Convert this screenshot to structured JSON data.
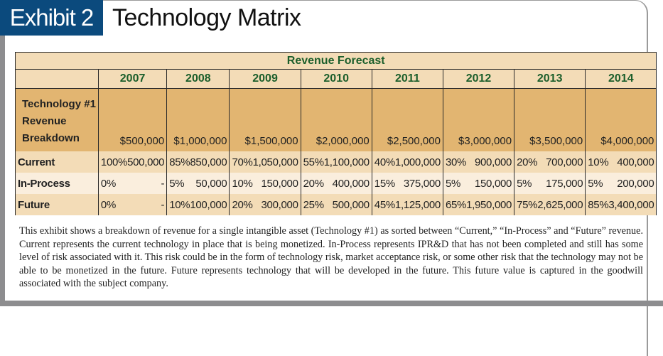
{
  "header": {
    "exhibit": "Exhibit 2",
    "title": "Technology Matrix"
  },
  "table": {
    "title": "Revenue Forecast",
    "years": [
      "2007",
      "2008",
      "2009",
      "2010",
      "2011",
      "2012",
      "2013",
      "2014"
    ],
    "total_label_lines": [
      "Technology #1",
      "Revenue",
      "Breakdown"
    ],
    "totals": [
      "$500,000",
      "$1,000,000",
      "$1,500,000",
      "$2,000,000",
      "$2,500,000",
      "$3,000,000",
      "$3,500,000",
      "$4,000,000"
    ],
    "rows": [
      {
        "label": "Current",
        "cells": [
          [
            "100%",
            "500,000"
          ],
          [
            "85%",
            "850,000"
          ],
          [
            "70%",
            "1,050,000"
          ],
          [
            "55%",
            "1,100,000"
          ],
          [
            "40%",
            "1,000,000"
          ],
          [
            "30%",
            "900,000"
          ],
          [
            "20%",
            "700,000"
          ],
          [
            "10%",
            "400,000"
          ]
        ]
      },
      {
        "label": "In-Process",
        "cells": [
          [
            "0%",
            "-"
          ],
          [
            "5%",
            "50,000"
          ],
          [
            "10%",
            "150,000"
          ],
          [
            "20%",
            "400,000"
          ],
          [
            "15%",
            "375,000"
          ],
          [
            "5%",
            "150,000"
          ],
          [
            "5%",
            "175,000"
          ],
          [
            "5%",
            "200,000"
          ]
        ]
      },
      {
        "label": "Future",
        "cells": [
          [
            "0%",
            "-"
          ],
          [
            "10%",
            "100,000"
          ],
          [
            "20%",
            "300,000"
          ],
          [
            "25%",
            "500,000"
          ],
          [
            "45%",
            "1,125,000"
          ],
          [
            "65%",
            "1,950,000"
          ],
          [
            "75%",
            "2,625,000"
          ],
          [
            "85%",
            "3,400,000"
          ]
        ]
      }
    ]
  },
  "description": "This exhibit shows a breakdown of revenue for a single intangible asset (Technology #1) as sorted between “Current,” “In-Process” and “Future” revenue. Current represents the current technology in place that is being monetized. In-Process represents IPR&D that has not been completed and still has some level of risk associated with it. This risk could be in the form of technology risk, market accept­ance risk, or some other risk that the technology may not be able to be monetized in the future. Future represents technology that will be developed in the future. This future value is captured in the goodwill associated with the subject company.",
  "colors": {
    "badge": "#0b4a7d",
    "header_text": "#1b5e2b",
    "header_bg": "#f3dcb7",
    "total_bg": "#e2b571",
    "light_row": "#faeedd"
  }
}
